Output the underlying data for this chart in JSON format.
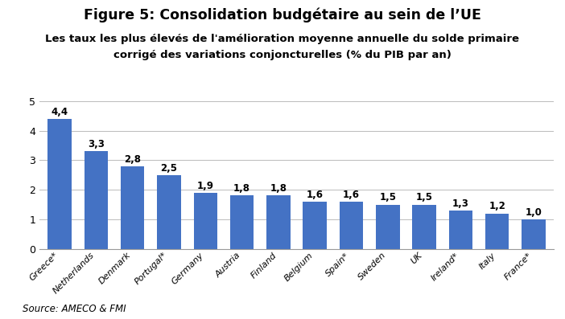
{
  "title": "Figure 5: Consolidation budgétaire au sein de l’UE",
  "subtitle_line1": "Les taux les plus élevés de l'amélioration moyenne annuelle du solde primaire",
  "subtitle_line2": "corrigé des variations conjoncturelles (% du PIB par an)",
  "source": "Source: AMECO & FMI",
  "categories": [
    "Greece*",
    "Netherlands",
    "Denmark",
    "Portugal*",
    "Germany",
    "Austria",
    "Finland",
    "Belgium",
    "Spain*",
    "Sweden",
    "UK",
    "Ireland*",
    "Italy",
    "France*"
  ],
  "values": [
    4.4,
    3.3,
    2.8,
    2.5,
    1.9,
    1.8,
    1.8,
    1.6,
    1.6,
    1.5,
    1.5,
    1.3,
    1.2,
    1.0
  ],
  "bar_color": "#4472C4",
  "ylim": [
    0,
    5.4
  ],
  "yticks": [
    0,
    1,
    2,
    3,
    4,
    5
  ],
  "background_color": "#ffffff",
  "title_fontsize": 12.5,
  "subtitle_fontsize": 9.5,
  "label_fontsize": 9,
  "value_fontsize": 8.5,
  "source_fontsize": 8.5,
  "xtick_fontsize": 8
}
